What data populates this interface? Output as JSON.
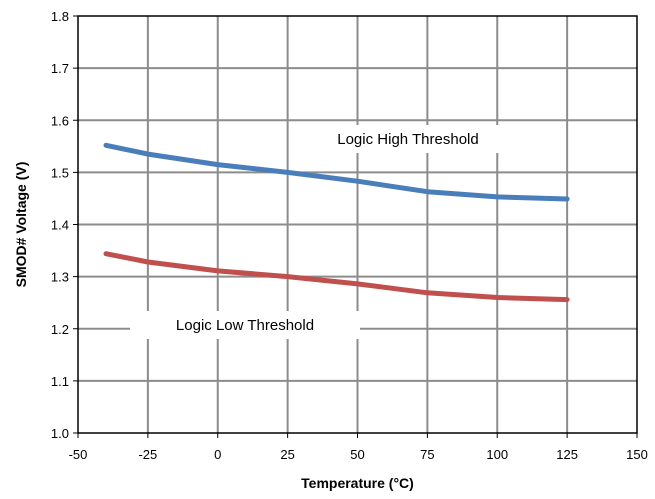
{
  "chart_data": {
    "type": "line",
    "title": "",
    "xlabel": "Temperature (°C)",
    "ylabel": "SMOD# Voltage (V)",
    "xlim": [
      -50,
      150
    ],
    "ylim": [
      1.0,
      1.8
    ],
    "xticks": [
      -50,
      -25,
      0,
      25,
      50,
      75,
      100,
      125,
      150
    ],
    "xtick_labels": [
      "-50",
      "-25",
      "0",
      "25",
      "50",
      "75",
      "100",
      "125",
      "150"
    ],
    "yticks": [
      1.0,
      1.1,
      1.2,
      1.3,
      1.4,
      1.5,
      1.6,
      1.7,
      1.8
    ],
    "ytick_labels": [
      "1.0",
      "1.1",
      "1.2",
      "1.3",
      "1.4",
      "1.5",
      "1.6",
      "1.7",
      "1.8"
    ],
    "grid": true,
    "legend": "none",
    "series": [
      {
        "name": "Logic High Threshold",
        "color": "#4a7ebb",
        "x": [
          -40,
          -25,
          0,
          25,
          50,
          75,
          100,
          125
        ],
        "y": [
          1.552,
          1.535,
          1.515,
          1.5,
          1.483,
          1.463,
          1.453,
          1.449
        ]
      },
      {
        "name": "Logic Low Threshold",
        "color": "#c0504d",
        "x": [
          -40,
          -25,
          0,
          25,
          50,
          75,
          100,
          125
        ],
        "y": [
          1.344,
          1.328,
          1.311,
          1.3,
          1.286,
          1.269,
          1.26,
          1.256
        ]
      }
    ],
    "annotations": [
      {
        "text": "Logic High Threshold",
        "series": 0
      },
      {
        "text": "Logic Low Threshold",
        "series": 1
      }
    ]
  }
}
